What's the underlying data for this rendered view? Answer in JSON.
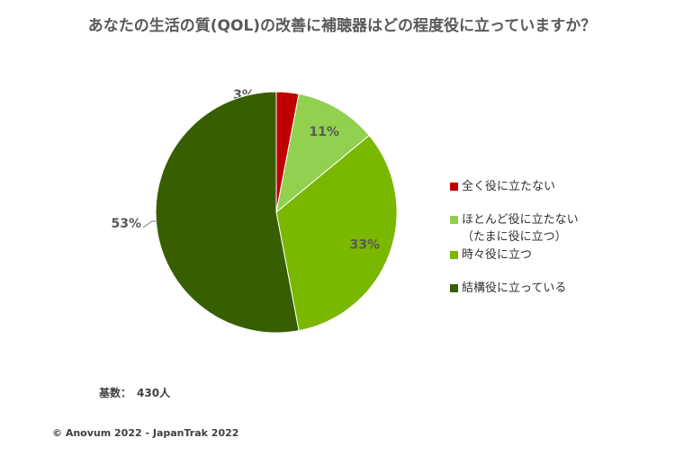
{
  "chart_data": {
    "type": "pie",
    "title": "あなたの生活の質(QOL)の改善に補聴器はどの程度役に立っていますか？",
    "categories": [
      "全く役に立たない",
      "ほとんど役に立たない（たまに役に立つ）",
      "時々役に立つ",
      "結構役に立っている"
    ],
    "legend_lines": [
      [
        "全く役に立たない"
      ],
      [
        "ほとんど役に立たない",
        "（たまに役に立つ）"
      ],
      [
        "時々役に立つ"
      ],
      [
        "結構役に立っている"
      ]
    ],
    "values": [
      3,
      11,
      33,
      53
    ],
    "labels": [
      "3%",
      "11%",
      "33%",
      "53%"
    ],
    "colors": [
      "#c00000",
      "#92d050",
      "#7ab800",
      "#375e00"
    ],
    "legend_position": "right"
  },
  "footer": {
    "base_label": "基数：",
    "base_value": "430人",
    "copyright": "© Anovum 2022 - JapanTrak 2022"
  }
}
